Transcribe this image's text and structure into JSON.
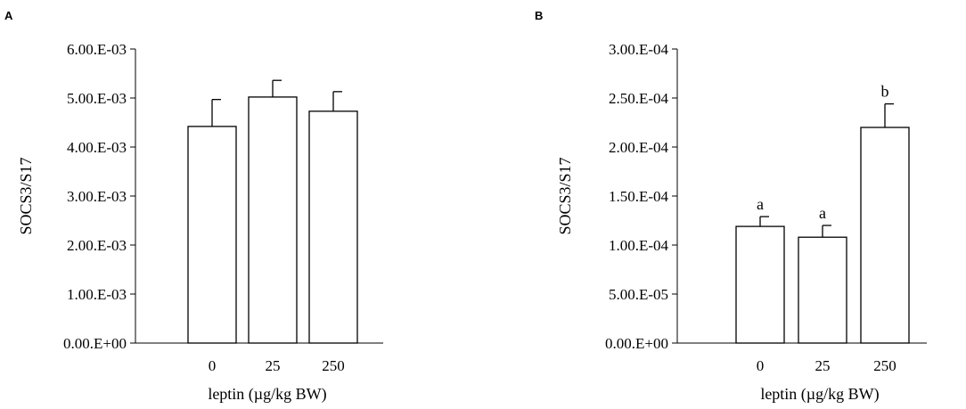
{
  "chart_data": [
    {
      "type": "bar",
      "panel": "A",
      "categories": [
        "0",
        "25",
        "250"
      ],
      "values": [
        0.00442,
        0.00502,
        0.00473
      ],
      "errors": [
        0.00055,
        0.00034,
        0.0004
      ],
      "significance": [
        "",
        "",
        ""
      ],
      "yticks": [
        "0.00.E+00",
        "1.00.E-03",
        "2.00.E-03",
        "3.00.E-03",
        "4.00.E-03",
        "5.00.E-03",
        "6.00.E-03"
      ],
      "ylim": [
        0,
        0.006
      ],
      "ylabel": "SOCS3/S17",
      "xlabel": "leptin  (µg/kg BW)",
      "grid": false,
      "bar_fill": "#ffffff",
      "bar_stroke": "#000000"
    },
    {
      "type": "bar",
      "panel": "B",
      "categories": [
        "0",
        "25",
        "250"
      ],
      "values": [
        0.000119,
        0.000108,
        0.00022
      ],
      "errors": [
        1e-05,
        1.2e-05,
        2.4e-05
      ],
      "significance": [
        "a",
        "a",
        "b"
      ],
      "yticks": [
        "0.00.E+00",
        "5.00.E-05",
        "1.00.E-04",
        "1.50.E-04",
        "2.00.E-04",
        "2.50.E-04",
        "3.00.E-04"
      ],
      "ylim": [
        0,
        0.0003
      ],
      "ylabel": "SOCS3/S17",
      "xlabel": "leptin  (µg/kg BW)",
      "grid": false,
      "bar_fill": "#ffffff",
      "bar_stroke": "#000000"
    }
  ]
}
